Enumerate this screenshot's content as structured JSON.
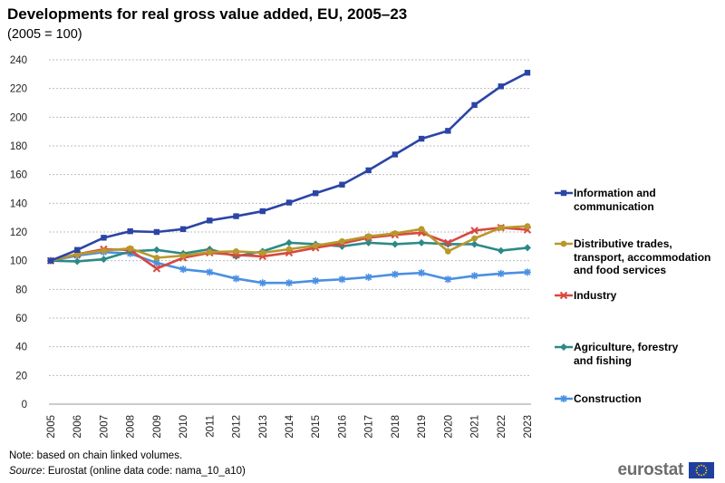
{
  "title": "Developments for real gross value added, EU, 2005–23",
  "subtitle": "(2005 = 100)",
  "note": "Note: based on chain linked volumes.",
  "source_label": "Source",
  "source_text": ": Eurostat (online data code: nama_10_a10)",
  "logo_text": "eurostat",
  "chart_data": {
    "type": "line",
    "title": "Developments for real gross value added, EU, 2005–23",
    "subtitle": "(2005 = 100)",
    "xlabel": "",
    "ylabel": "",
    "ylim": [
      0,
      240
    ],
    "yticks": [
      0,
      20,
      40,
      60,
      80,
      100,
      120,
      140,
      160,
      180,
      200,
      220,
      240
    ],
    "grid": "horizontal dashed",
    "legend_position": "right",
    "categories": [
      "2005",
      "2006",
      "2007",
      "2008",
      "2009",
      "2010",
      "2011",
      "2012",
      "2013",
      "2014",
      "2015",
      "2016",
      "2017",
      "2018",
      "2019",
      "2020",
      "2021",
      "2022",
      "2023"
    ],
    "series": [
      {
        "name": "Information and communication",
        "legend_lines": [
          "Information and",
          "communication"
        ],
        "color": "#2b45a5",
        "marker": "square",
        "values": [
          100,
          107.5,
          116,
          120.5,
          120,
          122,
          128,
          131,
          134.5,
          140.5,
          147,
          153,
          163,
          174,
          185,
          190.5,
          208.5,
          221.5,
          231
        ]
      },
      {
        "name": "Distributive trades, transport, accommodation and food services",
        "legend_lines": [
          "Distributive trades,",
          "transport, accommodation",
          "and food services"
        ],
        "color": "#b8982b",
        "marker": "circle",
        "values": [
          100,
          104.5,
          107,
          108.5,
          102,
          103.5,
          106,
          106.5,
          105.5,
          108,
          110.5,
          113.5,
          117,
          119,
          122,
          106.5,
          115.5,
          123,
          124
        ]
      },
      {
        "name": "Industry",
        "legend_lines": [
          "Industry"
        ],
        "color": "#d94841",
        "marker": "x",
        "values": [
          100,
          104.5,
          108,
          107.5,
          94.5,
          102,
          105.5,
          104,
          103,
          105.5,
          109,
          112,
          116,
          118,
          119.5,
          112.5,
          121,
          123,
          121.5
        ]
      },
      {
        "name": "Agriculture, forestry and fishing",
        "legend_lines": [
          "Agriculture, forestry",
          "and fishing"
        ],
        "color": "#2b8a87",
        "marker": "diamond",
        "values": [
          100,
          99.5,
          101,
          106.5,
          107.5,
          105,
          108,
          103,
          106.5,
          112.5,
          111.5,
          110,
          112.5,
          111.5,
          112.5,
          111.5,
          111.5,
          107,
          109
        ]
      },
      {
        "name": "Construction",
        "legend_lines": [
          "Construction"
        ],
        "color": "#4a90e2",
        "marker": "star",
        "values": [
          100,
          103.5,
          106,
          105,
          98.5,
          94,
          92,
          87.5,
          84.5,
          84.5,
          86,
          87,
          88.5,
          90.5,
          91.5,
          87,
          89.5,
          91,
          92
        ]
      }
    ]
  }
}
